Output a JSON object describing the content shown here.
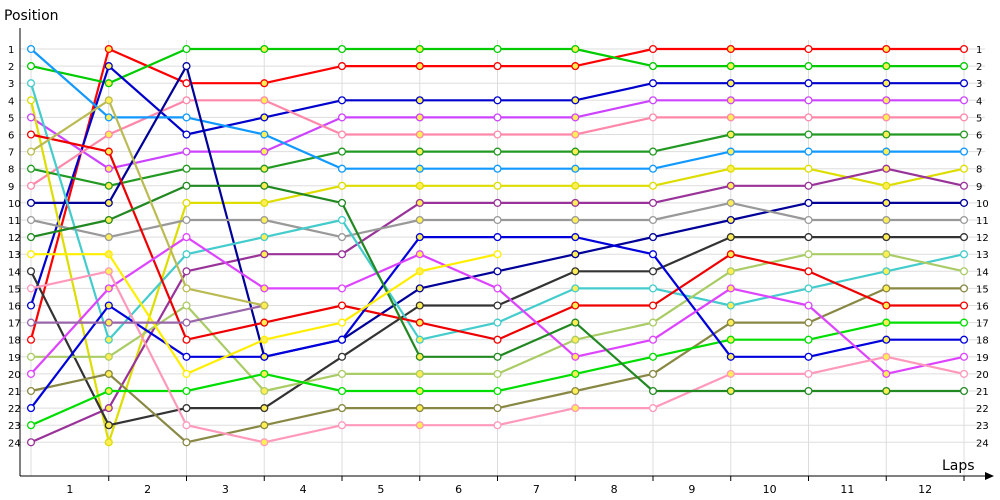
{
  "chart_data": {
    "type": "line",
    "title": "",
    "ylabel": "Position",
    "xlabel": "Laps",
    "x_tick_labels": [
      "1",
      "2",
      "3",
      "4",
      "5",
      "6",
      "7",
      "8",
      "9",
      "10",
      "11",
      "12"
    ],
    "y_tick_labels": [
      "1",
      "2",
      "3",
      "4",
      "5",
      "6",
      "7",
      "8",
      "9",
      "10",
      "11",
      "12",
      "13",
      "14",
      "15",
      "16",
      "17",
      "18",
      "19",
      "20",
      "21",
      "22",
      "23",
      "24"
    ],
    "ylim": [
      1,
      24
    ],
    "y_inverted": true,
    "grid": true,
    "legend": "none",
    "series": [
      {
        "color": "#ff0000",
        "values": [
          18,
          1,
          3,
          3,
          2,
          2,
          2,
          2,
          1,
          1,
          1,
          1,
          1
        ]
      },
      {
        "color": "#00cc00",
        "values": [
          2,
          3,
          1,
          1,
          1,
          1,
          1,
          1,
          2,
          2,
          2,
          2,
          2
        ]
      },
      {
        "color": "#0000cc",
        "values": [
          16,
          2,
          6,
          5,
          4,
          4,
          4,
          4,
          3,
          3,
          3,
          3,
          3
        ]
      },
      {
        "color": "#cc44ff",
        "values": [
          5,
          8,
          7,
          7,
          5,
          5,
          5,
          5,
          4,
          4,
          4,
          4,
          4
        ]
      },
      {
        "color": "#ff88aa",
        "values": [
          9,
          6,
          4,
          4,
          6,
          6,
          6,
          6,
          5,
          5,
          5,
          5,
          5
        ]
      },
      {
        "color": "#229922",
        "values": [
          8,
          9,
          8,
          8,
          7,
          7,
          7,
          7,
          7,
          6,
          6,
          6,
          6
        ]
      },
      {
        "color": "#1199ff",
        "values": [
          1,
          5,
          5,
          6,
          8,
          8,
          8,
          8,
          8,
          7,
          7,
          7,
          7
        ]
      },
      {
        "color": "#dddd00",
        "values": [
          4,
          24,
          10,
          10,
          9,
          9,
          9,
          9,
          9,
          8,
          8,
          9,
          8
        ]
      },
      {
        "color": "#993399",
        "values": [
          24,
          22,
          14,
          13,
          13,
          10,
          10,
          10,
          10,
          9,
          9,
          8,
          9
        ]
      },
      {
        "color": "#000099",
        "values": [
          10,
          10,
          2,
          19,
          18,
          15,
          14,
          13,
          12,
          11,
          10,
          10,
          10
        ]
      },
      {
        "color": "#999999",
        "values": [
          11,
          12,
          11,
          11,
          12,
          11,
          11,
          11,
          11,
          10,
          11,
          11,
          11
        ]
      },
      {
        "color": "#333333",
        "values": [
          14,
          23,
          22,
          22,
          19,
          16,
          16,
          14,
          14,
          12,
          12,
          12,
          12
        ]
      },
      {
        "color": "#44cccc",
        "values": [
          3,
          18,
          13,
          12,
          11,
          18,
          17,
          15,
          15,
          16,
          15,
          14,
          13
        ]
      },
      {
        "color": "#aacc66",
        "values": [
          19,
          19,
          16,
          21,
          20,
          20,
          20,
          18,
          17,
          14,
          13,
          13,
          14
        ]
      },
      {
        "color": "#888844",
        "values": [
          21,
          20,
          24,
          23,
          22,
          22,
          22,
          21,
          20,
          17,
          17,
          15,
          15
        ]
      },
      {
        "color": "#ee0000",
        "values": [
          6,
          7,
          18,
          17,
          16,
          17,
          18,
          16,
          16,
          13,
          14,
          16,
          16
        ]
      },
      {
        "color": "#00dd00",
        "values": [
          23,
          21,
          21,
          20,
          21,
          21,
          21,
          20,
          19,
          18,
          18,
          17,
          17
        ]
      },
      {
        "color": "#0000dd",
        "values": [
          22,
          16,
          19,
          19,
          18,
          12,
          12,
          12,
          13,
          19,
          19,
          18,
          18
        ]
      },
      {
        "color": "#dd44ff",
        "values": [
          20,
          15,
          12,
          15,
          15,
          13,
          15,
          19,
          18,
          15,
          16,
          20,
          19
        ]
      },
      {
        "color": "#ff99bb",
        "values": [
          15,
          14,
          23,
          24,
          23,
          23,
          23,
          22,
          22,
          20,
          20,
          19,
          20
        ]
      },
      {
        "color": "#228822",
        "values": [
          12,
          11,
          9,
          9,
          10,
          19,
          19,
          17,
          21,
          21,
          21,
          21,
          21
        ]
      },
      {
        "color": "#ffee00",
        "values": [
          13,
          13,
          20,
          18,
          17,
          14,
          13
        ]
      },
      {
        "color": "#9966aa",
        "values": [
          17,
          17,
          17,
          16
        ]
      },
      {
        "color": "#bbbb55",
        "values": [
          7,
          4,
          15,
          16
        ]
      }
    ]
  }
}
